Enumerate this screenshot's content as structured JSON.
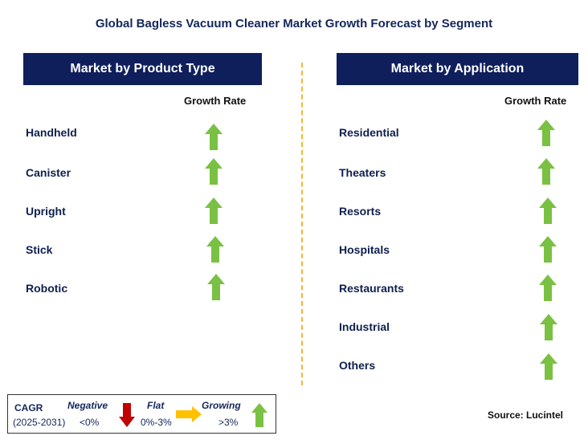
{
  "title": "Global Bagless Vacuum Cleaner Market Growth Forecast by Segment",
  "left_panel": {
    "header": "Market by Product Type",
    "column_label": "Growth Rate",
    "items": [
      {
        "label": "Handheld",
        "trend": "growing"
      },
      {
        "label": "Canister",
        "trend": "growing"
      },
      {
        "label": "Upright",
        "trend": "growing"
      },
      {
        "label": "Stick",
        "trend": "growing"
      },
      {
        "label": "Robotic",
        "trend": "growing"
      }
    ]
  },
  "right_panel": {
    "header": "Market by Application",
    "column_label": "Growth Rate",
    "items": [
      {
        "label": "Residential",
        "trend": "growing"
      },
      {
        "label": "Theaters",
        "trend": "growing"
      },
      {
        "label": "Resorts",
        "trend": "growing"
      },
      {
        "label": "Hospitals",
        "trend": "growing"
      },
      {
        "label": "Restaurants",
        "trend": "growing"
      },
      {
        "label": "Industrial",
        "trend": "growing"
      },
      {
        "label": "Others",
        "trend": "growing"
      }
    ]
  },
  "legend": {
    "cagr_label": "CAGR",
    "period": "(2025-2031)",
    "negative": {
      "label": "Negative",
      "range": "<0%",
      "color": "#c00000"
    },
    "flat": {
      "label": "Flat",
      "range": "0%-3%",
      "color": "#ffc000"
    },
    "growing": {
      "label": "Growing",
      "range": ">3%",
      "color": "#7ac143"
    }
  },
  "source": "Source: Lucintel",
  "colors": {
    "header_bg": "#0f1f5c",
    "divider": "#f5b335",
    "growing_arrow": "#7ac143"
  }
}
